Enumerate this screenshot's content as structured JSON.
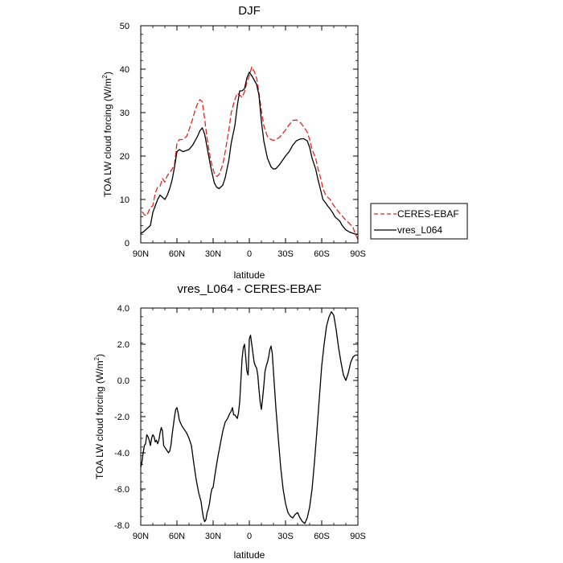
{
  "chart_data": [
    {
      "type": "line",
      "title": "DJF",
      "xlabel": "latitude",
      "ylabel": "TOA LW cloud forcing (W/m",
      "ylabel_sup": "2",
      "ylabel_tail": ")",
      "xlim": [
        90,
        -90
      ],
      "ylim": [
        0,
        50
      ],
      "xticks": [
        90,
        60,
        30,
        0,
        -30,
        -60,
        -90
      ],
      "xtick_labels": [
        "90N",
        "60N",
        "30N",
        "0",
        "30S",
        "60S",
        "90S"
      ],
      "yticks": [
        0,
        10,
        20,
        30,
        40,
        50
      ],
      "ytick_labels": [
        "0",
        "10",
        "20",
        "30",
        "40",
        "50"
      ],
      "legend_position": "right",
      "series": [
        {
          "name": "CERES-EBAF",
          "color": "#e8231f",
          "dash": "dashed",
          "x": [
            89,
            87,
            85,
            82,
            80,
            78,
            76,
            74,
            72,
            70,
            68,
            66,
            64,
            62,
            60,
            58,
            55,
            52,
            50,
            47,
            45,
            43,
            41,
            39,
            37,
            35,
            32,
            29,
            27,
            25,
            22,
            20,
            17,
            15,
            12,
            10,
            8,
            6,
            4,
            2,
            0,
            -2,
            -4,
            -6,
            -8,
            -10,
            -12,
            -15,
            -18,
            -20,
            -22,
            -25,
            -28,
            -30,
            -33,
            -36,
            -39,
            -42,
            -45,
            -48,
            -50,
            -52,
            -55,
            -57,
            -59,
            -61,
            -63,
            -65,
            -67,
            -69,
            -71,
            -73,
            -75,
            -77,
            -80,
            -83,
            -86,
            -88,
            -90
          ],
          "y": [
            7.2,
            6.5,
            6.3,
            8.2,
            8.5,
            11.5,
            12.8,
            13.0,
            14.8,
            14.0,
            15.5,
            16.2,
            17.0,
            18.0,
            23.0,
            23.8,
            23.8,
            24.5,
            26.0,
            28.5,
            30.5,
            32.0,
            33.0,
            32.5,
            28.5,
            24.0,
            19.0,
            16.0,
            15.3,
            15.8,
            18.0,
            21.0,
            26.0,
            30.0,
            33.0,
            34.5,
            34.0,
            33.5,
            34.8,
            37.0,
            38.5,
            40.5,
            39.5,
            38.0,
            34.5,
            30.5,
            27.0,
            24.5,
            23.8,
            23.6,
            23.8,
            24.3,
            25.3,
            26.0,
            27.2,
            28.2,
            28.3,
            27.8,
            26.8,
            25.5,
            23.8,
            21.5,
            19.5,
            17.0,
            15.0,
            12.5,
            11.2,
            10.5,
            10.0,
            9.0,
            8.2,
            7.5,
            6.8,
            6.2,
            5.2,
            4.5,
            3.5,
            2.0,
            0.8
          ]
        },
        {
          "name": "vres_L064",
          "color": "#000000",
          "dash": "solid",
          "x": [
            90,
            88,
            86,
            84,
            82,
            80,
            78,
            76,
            74,
            72,
            70,
            68,
            66,
            64,
            62,
            60,
            58,
            55,
            52,
            50,
            47,
            45,
            43,
            41,
            39,
            37,
            35,
            32,
            29,
            27,
            25,
            22,
            20,
            17,
            15,
            12,
            10,
            8,
            6,
            4,
            2,
            0,
            -2,
            -4,
            -6,
            -8,
            -10,
            -12,
            -15,
            -18,
            -20,
            -22,
            -25,
            -28,
            -30,
            -33,
            -36,
            -39,
            -42,
            -45,
            -48,
            -50,
            -52,
            -55,
            -57,
            -59,
            -61,
            -63,
            -65,
            -67,
            -69,
            -71,
            -73,
            -75,
            -77,
            -80,
            -83,
            -86,
            -88,
            -90
          ],
          "y": [
            2.2,
            2.5,
            3.0,
            3.5,
            4.0,
            7.0,
            8.5,
            10.0,
            11.0,
            10.5,
            10.0,
            11.0,
            12.5,
            14.5,
            17.5,
            21.0,
            21.5,
            21.0,
            21.3,
            21.5,
            22.5,
            23.5,
            24.5,
            25.8,
            26.5,
            25.0,
            22.0,
            17.5,
            13.8,
            12.8,
            12.5,
            13.3,
            15.0,
            19.0,
            23.0,
            27.0,
            31.5,
            35.0,
            35.0,
            35.5,
            38.0,
            39.3,
            38.5,
            37.5,
            36.5,
            34.0,
            28.0,
            23.5,
            19.5,
            17.5,
            17.0,
            17.1,
            18.0,
            19.2,
            20.0,
            21.0,
            22.5,
            23.5,
            23.9,
            24.0,
            23.5,
            22.0,
            19.5,
            17.0,
            14.5,
            12.3,
            10.0,
            9.3,
            8.5,
            7.8,
            7.0,
            6.0,
            5.5,
            5.0,
            4.0,
            3.0,
            2.5,
            2.2,
            2.0,
            2.0
          ]
        }
      ]
    },
    {
      "type": "line",
      "title": "vres_L064 - CERES-EBAF",
      "xlabel": "latitude",
      "ylabel": "TOA LW cloud forcing (W/m",
      "ylabel_sup": "2",
      "ylabel_tail": ")",
      "xlim": [
        90,
        -90
      ],
      "ylim": [
        -8,
        4
      ],
      "xticks": [
        90,
        60,
        30,
        0,
        -30,
        -60,
        -90
      ],
      "xtick_labels": [
        "90N",
        "60N",
        "30N",
        "0",
        "30S",
        "60S",
        "90S"
      ],
      "yticks": [
        4,
        2,
        0,
        -2,
        -4,
        -6,
        -8
      ],
      "ytick_labels": [
        "4.0",
        "2.0",
        "0.0",
        "-2.0",
        "-4.0",
        "-6.0",
        "-8.0"
      ],
      "series": [
        {
          "color": "#000000",
          "dash": "solid",
          "x": [
            90,
            89,
            88,
            87,
            86,
            85,
            84,
            83,
            82,
            81,
            80,
            79,
            78,
            77,
            76,
            75,
            74,
            73,
            72,
            71,
            70,
            69,
            68,
            67,
            66,
            65,
            64,
            63,
            62,
            61,
            60,
            59,
            58,
            56,
            54,
            52,
            50,
            48,
            46,
            44,
            42,
            40,
            39,
            38,
            37,
            36,
            35,
            34,
            33,
            32,
            31,
            30,
            28,
            26,
            24,
            22,
            20,
            18,
            16,
            15,
            14,
            13,
            12,
            11,
            10,
            9,
            8,
            7,
            6,
            5,
            4,
            3,
            2,
            1,
            0,
            -1,
            -2,
            -3,
            -4,
            -5,
            -6,
            -7,
            -8,
            -9,
            -10,
            -11,
            -12,
            -13,
            -14,
            -15,
            -16,
            -17,
            -18,
            -19,
            -20,
            -21,
            -22,
            -24,
            -26,
            -28,
            -30,
            -32,
            -34,
            -36,
            -38,
            -40,
            -42,
            -44,
            -46,
            -48,
            -50,
            -52,
            -54,
            -56,
            -58,
            -60,
            -62,
            -64,
            -66,
            -68,
            -70,
            -72,
            -74,
            -76,
            -78,
            -80,
            -82,
            -84,
            -86,
            -88,
            -90
          ],
          "y": [
            -4.8,
            -4.5,
            -4.0,
            -3.6,
            -3.5,
            -3.0,
            -3.1,
            -3.3,
            -3.6,
            -3.2,
            -3.0,
            -3.1,
            -3.4,
            -3.3,
            -3.5,
            -3.3,
            -2.9,
            -2.6,
            -2.8,
            -3.6,
            -3.7,
            -3.8,
            -3.9,
            -4.0,
            -3.9,
            -3.6,
            -3.0,
            -2.5,
            -2.0,
            -1.6,
            -1.5,
            -1.8,
            -2.2,
            -2.5,
            -2.7,
            -2.9,
            -3.2,
            -3.6,
            -4.6,
            -5.5,
            -6.2,
            -6.7,
            -7.2,
            -7.6,
            -7.8,
            -7.7,
            -7.3,
            -7.1,
            -6.8,
            -6.3,
            -6.0,
            -5.9,
            -5.0,
            -4.2,
            -3.5,
            -2.8,
            -2.3,
            -2.1,
            -1.8,
            -1.7,
            -1.5,
            -1.9,
            -1.9,
            -2.0,
            -2.1,
            -1.8,
            -1.2,
            0.0,
            1.2,
            1.8,
            2.0,
            1.3,
            0.5,
            0.3,
            2.3,
            2.5,
            2.0,
            1.5,
            1.0,
            0.8,
            0.7,
            0.3,
            -0.5,
            -1.2,
            -1.6,
            -1.0,
            -0.3,
            0.5,
            0.8,
            1.0,
            1.3,
            1.7,
            1.9,
            1.5,
            0.5,
            -0.5,
            -1.5,
            -3.2,
            -4.8,
            -6.0,
            -6.8,
            -7.3,
            -7.5,
            -7.6,
            -7.4,
            -7.3,
            -7.6,
            -7.8,
            -7.9,
            -7.6,
            -7.0,
            -6.0,
            -4.5,
            -2.8,
            -1.0,
            0.8,
            2.0,
            3.0,
            3.5,
            3.8,
            3.6,
            2.8,
            1.8,
            1.0,
            0.3,
            0.0,
            0.4,
            1.0,
            1.3,
            1.4,
            1.4
          ]
        }
      ]
    }
  ]
}
